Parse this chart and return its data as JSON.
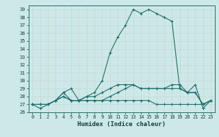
{
  "title": "",
  "xlabel": "Humidex (Indice chaleur)",
  "ylabel": "",
  "bg_color": "#cde8e8",
  "grid_color": "#b0d0d0",
  "line_color": "#1a6b6b",
  "xlim": [
    -0.5,
    23.5
  ],
  "ylim": [
    26,
    39.5
  ],
  "yticks": [
    26,
    27,
    28,
    29,
    30,
    31,
    32,
    33,
    34,
    35,
    36,
    37,
    38,
    39
  ],
  "xticks": [
    0,
    1,
    2,
    3,
    4,
    5,
    6,
    7,
    8,
    9,
    10,
    11,
    12,
    13,
    14,
    15,
    16,
    17,
    18,
    19,
    20,
    21,
    22,
    23
  ],
  "series": [
    {
      "x": [
        0,
        1,
        2,
        3,
        4,
        5,
        6,
        7,
        8,
        9,
        10,
        11,
        12,
        13,
        14,
        15,
        16,
        17,
        18,
        19,
        20,
        21,
        22,
        23
      ],
      "y": [
        27.0,
        26.5,
        27.0,
        27.5,
        28.5,
        29.0,
        27.5,
        28.0,
        28.5,
        30.0,
        33.5,
        35.5,
        37.0,
        39.0,
        38.5,
        39.0,
        38.5,
        38.0,
        37.5,
        29.0,
        28.5,
        29.5,
        26.5,
        27.5
      ]
    },
    {
      "x": [
        0,
        1,
        2,
        3,
        4,
        5,
        6,
        7,
        8,
        9,
        10,
        11,
        12,
        13,
        14,
        15,
        16,
        17,
        18,
        19,
        20,
        21,
        22,
        23
      ],
      "y": [
        27.0,
        27.0,
        27.0,
        27.5,
        28.0,
        27.5,
        27.5,
        27.5,
        27.5,
        27.5,
        28.0,
        28.5,
        29.0,
        29.5,
        29.0,
        29.0,
        29.0,
        29.0,
        29.5,
        29.5,
        28.5,
        28.5,
        27.0,
        27.5
      ]
    },
    {
      "x": [
        0,
        1,
        2,
        3,
        4,
        5,
        6,
        7,
        8,
        9,
        10,
        11,
        12,
        13,
        14,
        15,
        16,
        17,
        18,
        19,
        20,
        21,
        22,
        23
      ],
      "y": [
        27.0,
        27.0,
        27.0,
        27.5,
        28.0,
        27.5,
        27.5,
        27.5,
        27.5,
        27.5,
        27.5,
        27.5,
        27.5,
        27.5,
        27.5,
        27.5,
        27.0,
        27.0,
        27.0,
        27.0,
        27.0,
        27.0,
        27.0,
        27.5
      ]
    },
    {
      "x": [
        0,
        1,
        2,
        3,
        4,
        5,
        6,
        7,
        8,
        9,
        10,
        11,
        12,
        13,
        14,
        15,
        16,
        17,
        18,
        19,
        20,
        21,
        22,
        23
      ],
      "y": [
        27.0,
        27.0,
        27.0,
        27.5,
        28.5,
        27.5,
        27.5,
        28.0,
        28.0,
        28.5,
        29.0,
        29.5,
        29.5,
        29.5,
        29.0,
        29.0,
        29.0,
        29.0,
        29.0,
        29.0,
        28.5,
        28.5,
        27.0,
        27.5
      ]
    }
  ]
}
